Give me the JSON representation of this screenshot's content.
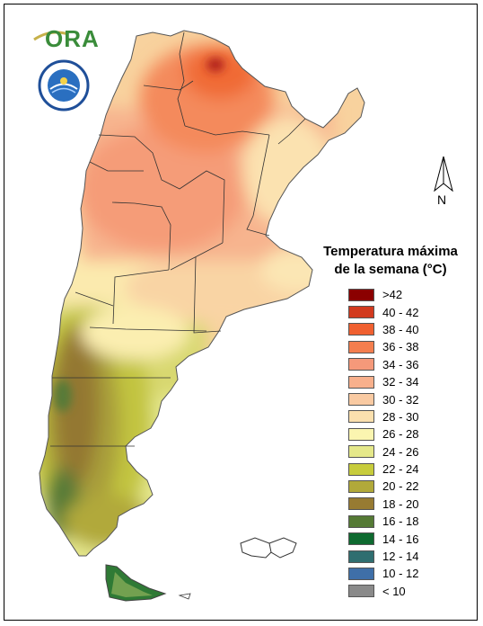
{
  "header": {
    "logo_text": "ORA"
  },
  "seal": {
    "icon": "institution-seal-icon",
    "ring_text": "SERVICIO METEOROLOGICO NACIONAL ARGENTINA"
  },
  "north_arrow": {
    "label": "N",
    "icon": "north-arrow-icon"
  },
  "legend": {
    "title_line1": "Temperatura máxima",
    "title_line2": "de la semana (°C)",
    "items": [
      {
        "label": ">42",
        "color": "#8b0000"
      },
      {
        "label": "40 - 42",
        "color": "#d23a1e"
      },
      {
        "label": "38 - 40",
        "color": "#f06030"
      },
      {
        "label": "36 - 38",
        "color": "#f47e4e"
      },
      {
        "label": "34 - 36",
        "color": "#f5997a"
      },
      {
        "label": "32 - 34",
        "color": "#f8b08c"
      },
      {
        "label": "30 - 32",
        "color": "#f9caa2"
      },
      {
        "label": "28 - 30",
        "color": "#fbe0ae"
      },
      {
        "label": "26 - 28",
        "color": "#fbf5b0"
      },
      {
        "label": "24 - 26",
        "color": "#e5e88a"
      },
      {
        "label": "22 - 24",
        "color": "#c7cc3c"
      },
      {
        "label": "20 - 22",
        "color": "#b1a93a"
      },
      {
        "label": "18 - 20",
        "color": "#977b32"
      },
      {
        "label": "16 - 18",
        "color": "#557a35"
      },
      {
        "label": "14 - 16",
        "color": "#0e6a30"
      },
      {
        "label": "12 - 14",
        "color": "#2f6e70"
      },
      {
        "label": "10 - 12",
        "color": "#3f6fa8"
      },
      {
        "label": "< 10",
        "color": "#8a8a8a"
      }
    ]
  }
}
